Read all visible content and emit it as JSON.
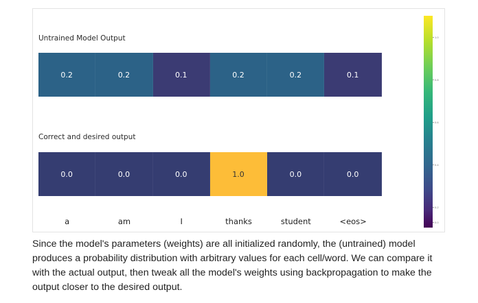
{
  "figure": {
    "untrained_label": "Untrained Model Output",
    "desired_label": "Correct and desired output",
    "tokens": [
      "a",
      "am",
      "I",
      "thanks",
      "student",
      "<eos>"
    ],
    "untrained_values": [
      "0.2",
      "0.2",
      "0.1",
      "0.2",
      "0.2",
      "0.1"
    ],
    "desired_values": [
      "0.0",
      "0.0",
      "0.0",
      "1.0",
      "0.0",
      "0.0"
    ],
    "colors": {
      "val_0_0": "#3b3b73",
      "val_0_1": "#353d71",
      "val_0_2": "#2c6287",
      "val_1_0": "#fdbd38",
      "figure_border": "#e3e3e3"
    },
    "colorbar": {
      "ticks": [
        "1.0",
        "0.8",
        "0.6",
        "0.4",
        "0.2",
        "0.0"
      ]
    }
  },
  "caption": "Since the model's parameters (weights) are all initialized randomly, the (untrained) model produces a probability distribution with arbitrary values for each cell/word. We can compare it with the actual output, then tweak all the model's weights using backpropagation to make the output closer to the desired output."
}
